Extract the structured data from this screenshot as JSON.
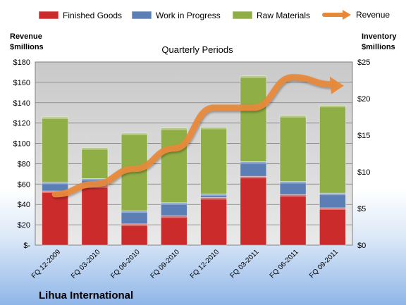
{
  "chart_data": {
    "type": "bar",
    "stacked": true,
    "subtitle": "Quarterly Periods",
    "company": "Lihua International",
    "left_axis_title": [
      "Revenue",
      "$millions"
    ],
    "right_axis_title": [
      "Inventory",
      "$millions"
    ],
    "categories": [
      "FQ 12-2009",
      "FQ 03-2010",
      "FQ 06-2010",
      "FQ 09-2010",
      "FQ 12-2010",
      "FQ 03-2011",
      "FQ 06-2011",
      "FQ 09-2011"
    ],
    "left_ylim": [
      0,
      180
    ],
    "left_ticks": [
      "$-",
      "$20",
      "$40",
      "$60",
      "$80",
      "$100",
      "$120",
      "$140",
      "$160",
      "$180"
    ],
    "right_ylim": [
      0,
      25
    ],
    "right_ticks": [
      "$0",
      "$5",
      "$10",
      "$15",
      "$20",
      "$25"
    ],
    "series": [
      {
        "name": "Finished Goods",
        "axis": "right",
        "color": "#cc2b2b",
        "values": [
          7.4,
          8.1,
          2.9,
          4.0,
          6.5,
          9.4,
          6.9,
          5.1
        ]
      },
      {
        "name": "Work in Progress",
        "axis": "right",
        "color": "#5b7fb5",
        "values": [
          1.2,
          1.0,
          1.8,
          1.8,
          0.5,
          2.0,
          1.8,
          2.0
        ]
      },
      {
        "name": "Raw Materials",
        "axis": "right",
        "color": "#8fae45",
        "values": [
          8.9,
          4.2,
          10.6,
          10.2,
          9.1,
          11.7,
          9.0,
          12.0
        ]
      },
      {
        "name": "Revenue",
        "axis": "left",
        "type": "line",
        "color": "#e8893a",
        "values": [
          50,
          60,
          75,
          95,
          135,
          135,
          165,
          158
        ]
      }
    ],
    "grid": true,
    "legend_position": "top"
  }
}
